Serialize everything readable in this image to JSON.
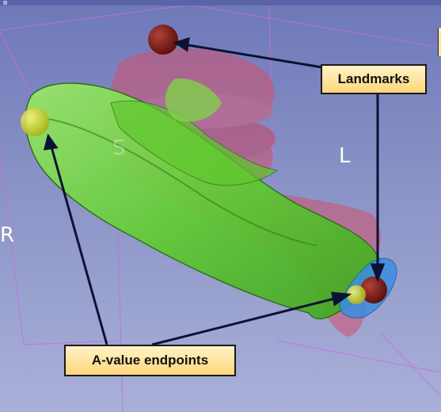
{
  "window": {
    "top_icon": "⊞"
  },
  "orientation": {
    "left": "L",
    "right": "R",
    "superior": "S"
  },
  "callouts": {
    "landmarks": "Landmarks",
    "a_value_endpoints": "A-value endpoints"
  },
  "colors": {
    "background": "#7a83c0",
    "green_structure": "#6ed23a",
    "red_structure": "#d0506a",
    "landmark_sphere": "#7a1a14",
    "endpoint_sphere": "#e0e020",
    "blue_structure": "#3a8ee0",
    "bounding_box": "#c66ce0",
    "callout_fill": "#ffe08a"
  }
}
